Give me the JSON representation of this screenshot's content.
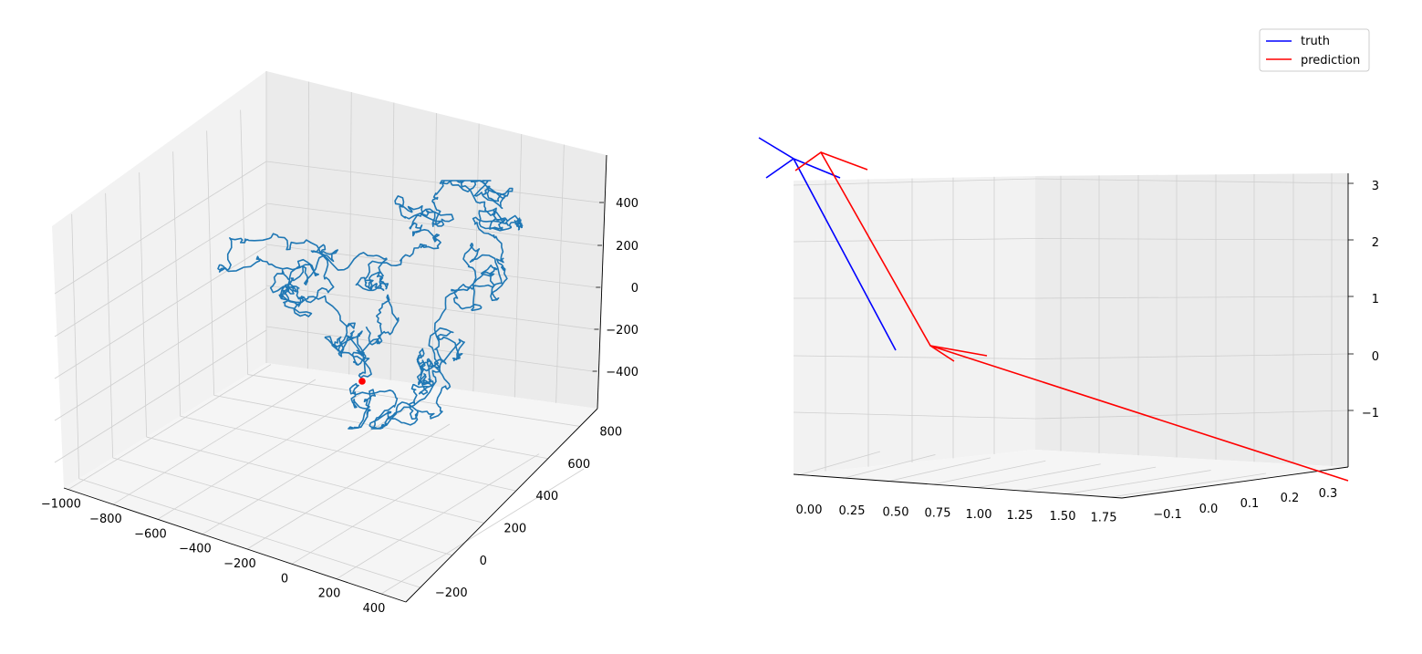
{
  "chart_data": [
    {
      "type": "line3d",
      "title": "",
      "xlabel": "",
      "ylabel": "",
      "zlabel": "",
      "xlim": [
        -1000,
        400
      ],
      "ylim": [
        -300,
        900
      ],
      "zlim": [
        -500,
        550
      ],
      "grid": true,
      "x_ticks": [
        "−1000",
        "−800",
        "−600",
        "−400",
        "−200",
        "0",
        "200",
        "400"
      ],
      "y_ticks": [
        "−200",
        "0",
        "200",
        "400",
        "600",
        "800"
      ],
      "z_ticks": [
        "−400",
        "−200",
        "0",
        "200",
        "400"
      ],
      "series": [
        {
          "color": "#1f77b4",
          "style": "random-walk trajectory"
        }
      ],
      "marker": {
        "color": "#ff0000",
        "label": ""
      }
    },
    {
      "type": "line3d",
      "title": "",
      "xlabel": "",
      "ylabel": "",
      "zlabel": "",
      "xlim": [
        -0.1,
        1.9
      ],
      "ylim": [
        -0.2,
        0.35
      ],
      "zlim": [
        -2,
        3.1
      ],
      "grid": true,
      "legend_position": "top-right",
      "x_ticks": [
        "0.00",
        "0.25",
        "0.50",
        "0.75",
        "1.00",
        "1.25",
        "1.50",
        "1.75"
      ],
      "y_ticks": [
        "−0.1",
        "0.0",
        "0.1",
        "0.2",
        "0.3"
      ],
      "z_ticks": [
        "−1",
        "0",
        "1",
        "2",
        "3"
      ],
      "series": [
        {
          "name": "truth",
          "color": "#0000ff"
        },
        {
          "name": "prediction",
          "color": "#ff0000"
        }
      ]
    }
  ]
}
